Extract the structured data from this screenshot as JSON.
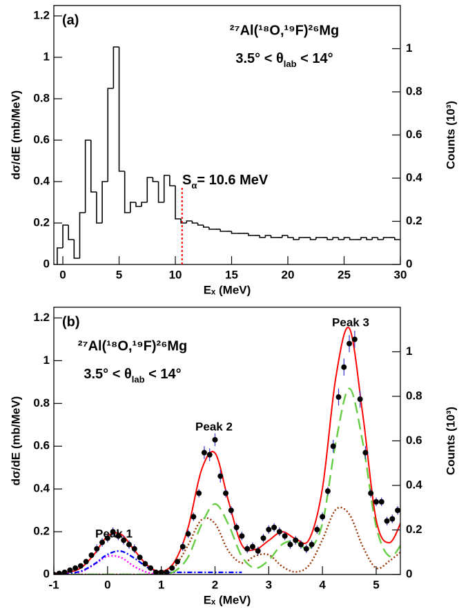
{
  "chart_data": [
    {
      "type": "histogram",
      "label": "(a)",
      "reaction": "²⁷Al(¹⁸O,¹⁹F)²⁶Mg",
      "angle": {
        "pre": "3.5° < θ",
        "sub": "lab",
        "post": " < 14°"
      },
      "x_label": "Eₓ (MeV)",
      "y_label": "dσ/dE (mb/MeV)",
      "y2_label": "Counts (10³)",
      "xlim": [
        -0.8,
        30
      ],
      "xticks": [
        0,
        5,
        10,
        15,
        20,
        25,
        30
      ],
      "ylim": [
        0,
        1.25
      ],
      "yticks": [
        0,
        0.2,
        0.4,
        0.6,
        0.8,
        1,
        1.2
      ],
      "y2lim": [
        0,
        1.2
      ],
      "y2ticks": [
        0,
        0.2,
        0.4,
        0.6,
        0.8,
        1
      ],
      "color": "#000000",
      "bins": [
        -0.5,
        0,
        0.5,
        1,
        1.5,
        2,
        2.5,
        3,
        3.5,
        4,
        4.5,
        5,
        5.5,
        6,
        6.5,
        7,
        7.5,
        8,
        8.5,
        9,
        9.5,
        10,
        10.5,
        11,
        11.5,
        12,
        12.5,
        13,
        13.5,
        14,
        14.5,
        15,
        15.5,
        16,
        16.5,
        17,
        17.5,
        18,
        18.5,
        19,
        19.5,
        20,
        20.5,
        21,
        21.5,
        22,
        22.5,
        23,
        23.5,
        24,
        24.5,
        25,
        25.5,
        26,
        26.5,
        27,
        27.5,
        28,
        28.5,
        29,
        29.5,
        30
      ],
      "values": [
        0.08,
        0.19,
        0.12,
        0.03,
        0.25,
        0.6,
        0.35,
        0.2,
        0.4,
        0.85,
        1.05,
        0.45,
        0.25,
        0.3,
        0.28,
        0.3,
        0.42,
        0.4,
        0.3,
        0.43,
        0.38,
        0.22,
        0.2,
        0.21,
        0.2,
        0.19,
        0.18,
        0.17,
        0.17,
        0.16,
        0.16,
        0.15,
        0.15,
        0.15,
        0.14,
        0.14,
        0.13,
        0.14,
        0.13,
        0.13,
        0.14,
        0.13,
        0.12,
        0.13,
        0.13,
        0.12,
        0.13,
        0.13,
        0.12,
        0.13,
        0.12,
        0.13,
        0.12,
        0.12,
        0.13,
        0.12,
        0.13,
        0.12,
        0.13,
        0.13,
        0.12
      ],
      "sep_line": {
        "label": {
          "pre": "S",
          "sub": "α",
          "post": "= 10.6 MeV"
        },
        "x": 10.6,
        "y": [
          0,
          0.38
        ],
        "color": "#ff0000"
      }
    },
    {
      "type": "fit",
      "label": "(b)",
      "reaction": "²⁷Al(¹⁸O,¹⁹F)²⁶Mg",
      "angle": {
        "pre": "3.5° < θ",
        "sub": "lab",
        "post": " < 14°"
      },
      "peak_labels": [
        "Peak 1",
        "Peak 2",
        "Peak 3"
      ],
      "x_label": "Eₓ (MeV)",
      "y_label": "dσ/dE (mb/MeV)",
      "y2_label": "Counts (10³)",
      "xlim": [
        -1,
        5.45
      ],
      "xticks": [
        -1,
        0,
        1,
        2,
        3,
        4,
        5
      ],
      "ylim": [
        0,
        1.25
      ],
      "yticks": [
        0,
        0.2,
        0.4,
        0.6,
        0.8,
        1,
        1.2
      ],
      "y2lim": [
        0,
        1.2
      ],
      "y2ticks": [
        0,
        0.2,
        0.4,
        0.6,
        0.8,
        1
      ],
      "points": {
        "color": "#000000",
        "error_color": "#3333cc",
        "x": [
          -1.0,
          -0.9,
          -0.8,
          -0.7,
          -0.6,
          -0.5,
          -0.4,
          -0.3,
          -0.2,
          -0.1,
          0.0,
          0.1,
          0.2,
          0.3,
          0.4,
          0.5,
          0.6,
          0.7,
          0.8,
          0.9,
          1.0,
          1.1,
          1.2,
          1.3,
          1.4,
          1.5,
          1.6,
          1.7,
          1.8,
          1.9,
          2.0,
          2.1,
          2.2,
          2.3,
          2.4,
          2.5,
          2.6,
          2.7,
          2.8,
          2.9,
          3.0,
          3.1,
          3.2,
          3.3,
          3.4,
          3.5,
          3.6,
          3.7,
          3.8,
          3.9,
          4.0,
          4.1,
          4.2,
          4.3,
          4.4,
          4.5,
          4.6,
          4.7,
          4.8,
          4.9,
          5.0,
          5.1,
          5.2,
          5.3,
          5.4
        ],
        "values": [
          0,
          0.005,
          0.01,
          0.02,
          0.03,
          0.04,
          0.06,
          0.09,
          0.12,
          0.15,
          0.17,
          0.2,
          0.18,
          0.16,
          0.14,
          0.12,
          0.08,
          0.05,
          0.03,
          0.01,
          0.01,
          0.01,
          0.03,
          0.06,
          0.13,
          0.19,
          0.27,
          0.38,
          0.57,
          0.56,
          0.63,
          0.46,
          0.38,
          0.3,
          0.22,
          0.18,
          0.12,
          0.13,
          0.11,
          0.17,
          0.21,
          0.22,
          0.2,
          0.18,
          0.14,
          0.16,
          0.14,
          0.12,
          0.14,
          0.21,
          0.27,
          0.39,
          0.6,
          0.83,
          0.97,
          1.08,
          1.1,
          0.82,
          0.57,
          0.38,
          0.34,
          0.34,
          0.25,
          0.26,
          0.3
        ],
        "errors": [
          0.01,
          0.01,
          0.01,
          0.01,
          0.01,
          0.01,
          0.01,
          0.01,
          0.02,
          0.02,
          0.02,
          0.02,
          0.02,
          0.02,
          0.02,
          0.02,
          0.01,
          0.01,
          0.01,
          0.01,
          0.01,
          0.01,
          0.01,
          0.01,
          0.02,
          0.02,
          0.02,
          0.02,
          0.03,
          0.03,
          0.03,
          0.03,
          0.02,
          0.02,
          0.02,
          0.02,
          0.02,
          0.02,
          0.02,
          0.02,
          0.02,
          0.02,
          0.02,
          0.02,
          0.02,
          0.02,
          0.02,
          0.02,
          0.02,
          0.02,
          0.02,
          0.02,
          0.03,
          0.04,
          0.04,
          0.04,
          0.04,
          0.04,
          0.03,
          0.02,
          0.02,
          0.02,
          0.02,
          0.02,
          0.02
        ]
      },
      "curve_x": [
        -1,
        -0.75,
        -0.5,
        -0.25,
        0,
        0.25,
        0.5,
        0.75,
        1,
        1.25,
        1.5,
        1.75,
        2,
        2.25,
        2.5,
        2.75,
        3,
        3.25,
        3.5,
        3.75,
        4,
        4.25,
        4.5,
        4.75,
        5,
        5.25,
        5.5
      ],
      "series": [
        {
          "color": "#ff00ff",
          "dash": "dot",
          "values": [
            0,
            0,
            0.012,
            0.046,
            0.085,
            0.079,
            0.037,
            0.009,
            0,
            0,
            null,
            null,
            null,
            null,
            null,
            null,
            null,
            null,
            null,
            null,
            null,
            null,
            null,
            null,
            null,
            null,
            null
          ]
        },
        {
          "color": "#0000ff",
          "dash": "dashdot",
          "values": [
            0.002,
            0.005,
            0.015,
            0.048,
            0.094,
            0.109,
            0.076,
            0.032,
            0.01,
            0.01,
            0.01,
            0.01,
            0.01,
            0.01,
            0.01,
            null,
            null,
            null,
            null,
            null,
            null,
            null,
            null,
            null,
            null,
            null,
            null
          ]
        },
        {
          "color": "#993300",
          "dash": "dot",
          "values": [
            0,
            0,
            0,
            0,
            0,
            0,
            0,
            0,
            0.005,
            0.036,
            0.138,
            0.256,
            0.238,
            0.11,
            0.054,
            0.087,
            0.092,
            0.038,
            0.012,
            0.043,
            0.163,
            0.304,
            0.282,
            0.131,
            0.03,
            0.064,
            0.114
          ]
        },
        {
          "color": "#66cc44",
          "dash": "long",
          "values": [
            0,
            0,
            0,
            0,
            0,
            0,
            0,
            0,
            0.001,
            0.015,
            0.082,
            0.234,
            0.33,
            0.234,
            0.084,
            0.03,
            0.067,
            0.141,
            0.155,
            0.12,
            0.24,
            0.62,
            0.87,
            0.618,
            0.225,
            0.085,
            0.155
          ]
        },
        {
          "color": "#ff0000",
          "dash": "solid",
          "values": [
            0.005,
            0.01,
            0.03,
            0.094,
            0.18,
            0.188,
            0.113,
            0.041,
            0.014,
            0.061,
            0.22,
            0.49,
            0.568,
            0.344,
            0.138,
            0.117,
            0.159,
            0.2,
            0.167,
            0.163,
            0.403,
            0.924,
            1.152,
            0.749,
            0.255,
            0.149,
            0.269
          ]
        }
      ]
    }
  ]
}
